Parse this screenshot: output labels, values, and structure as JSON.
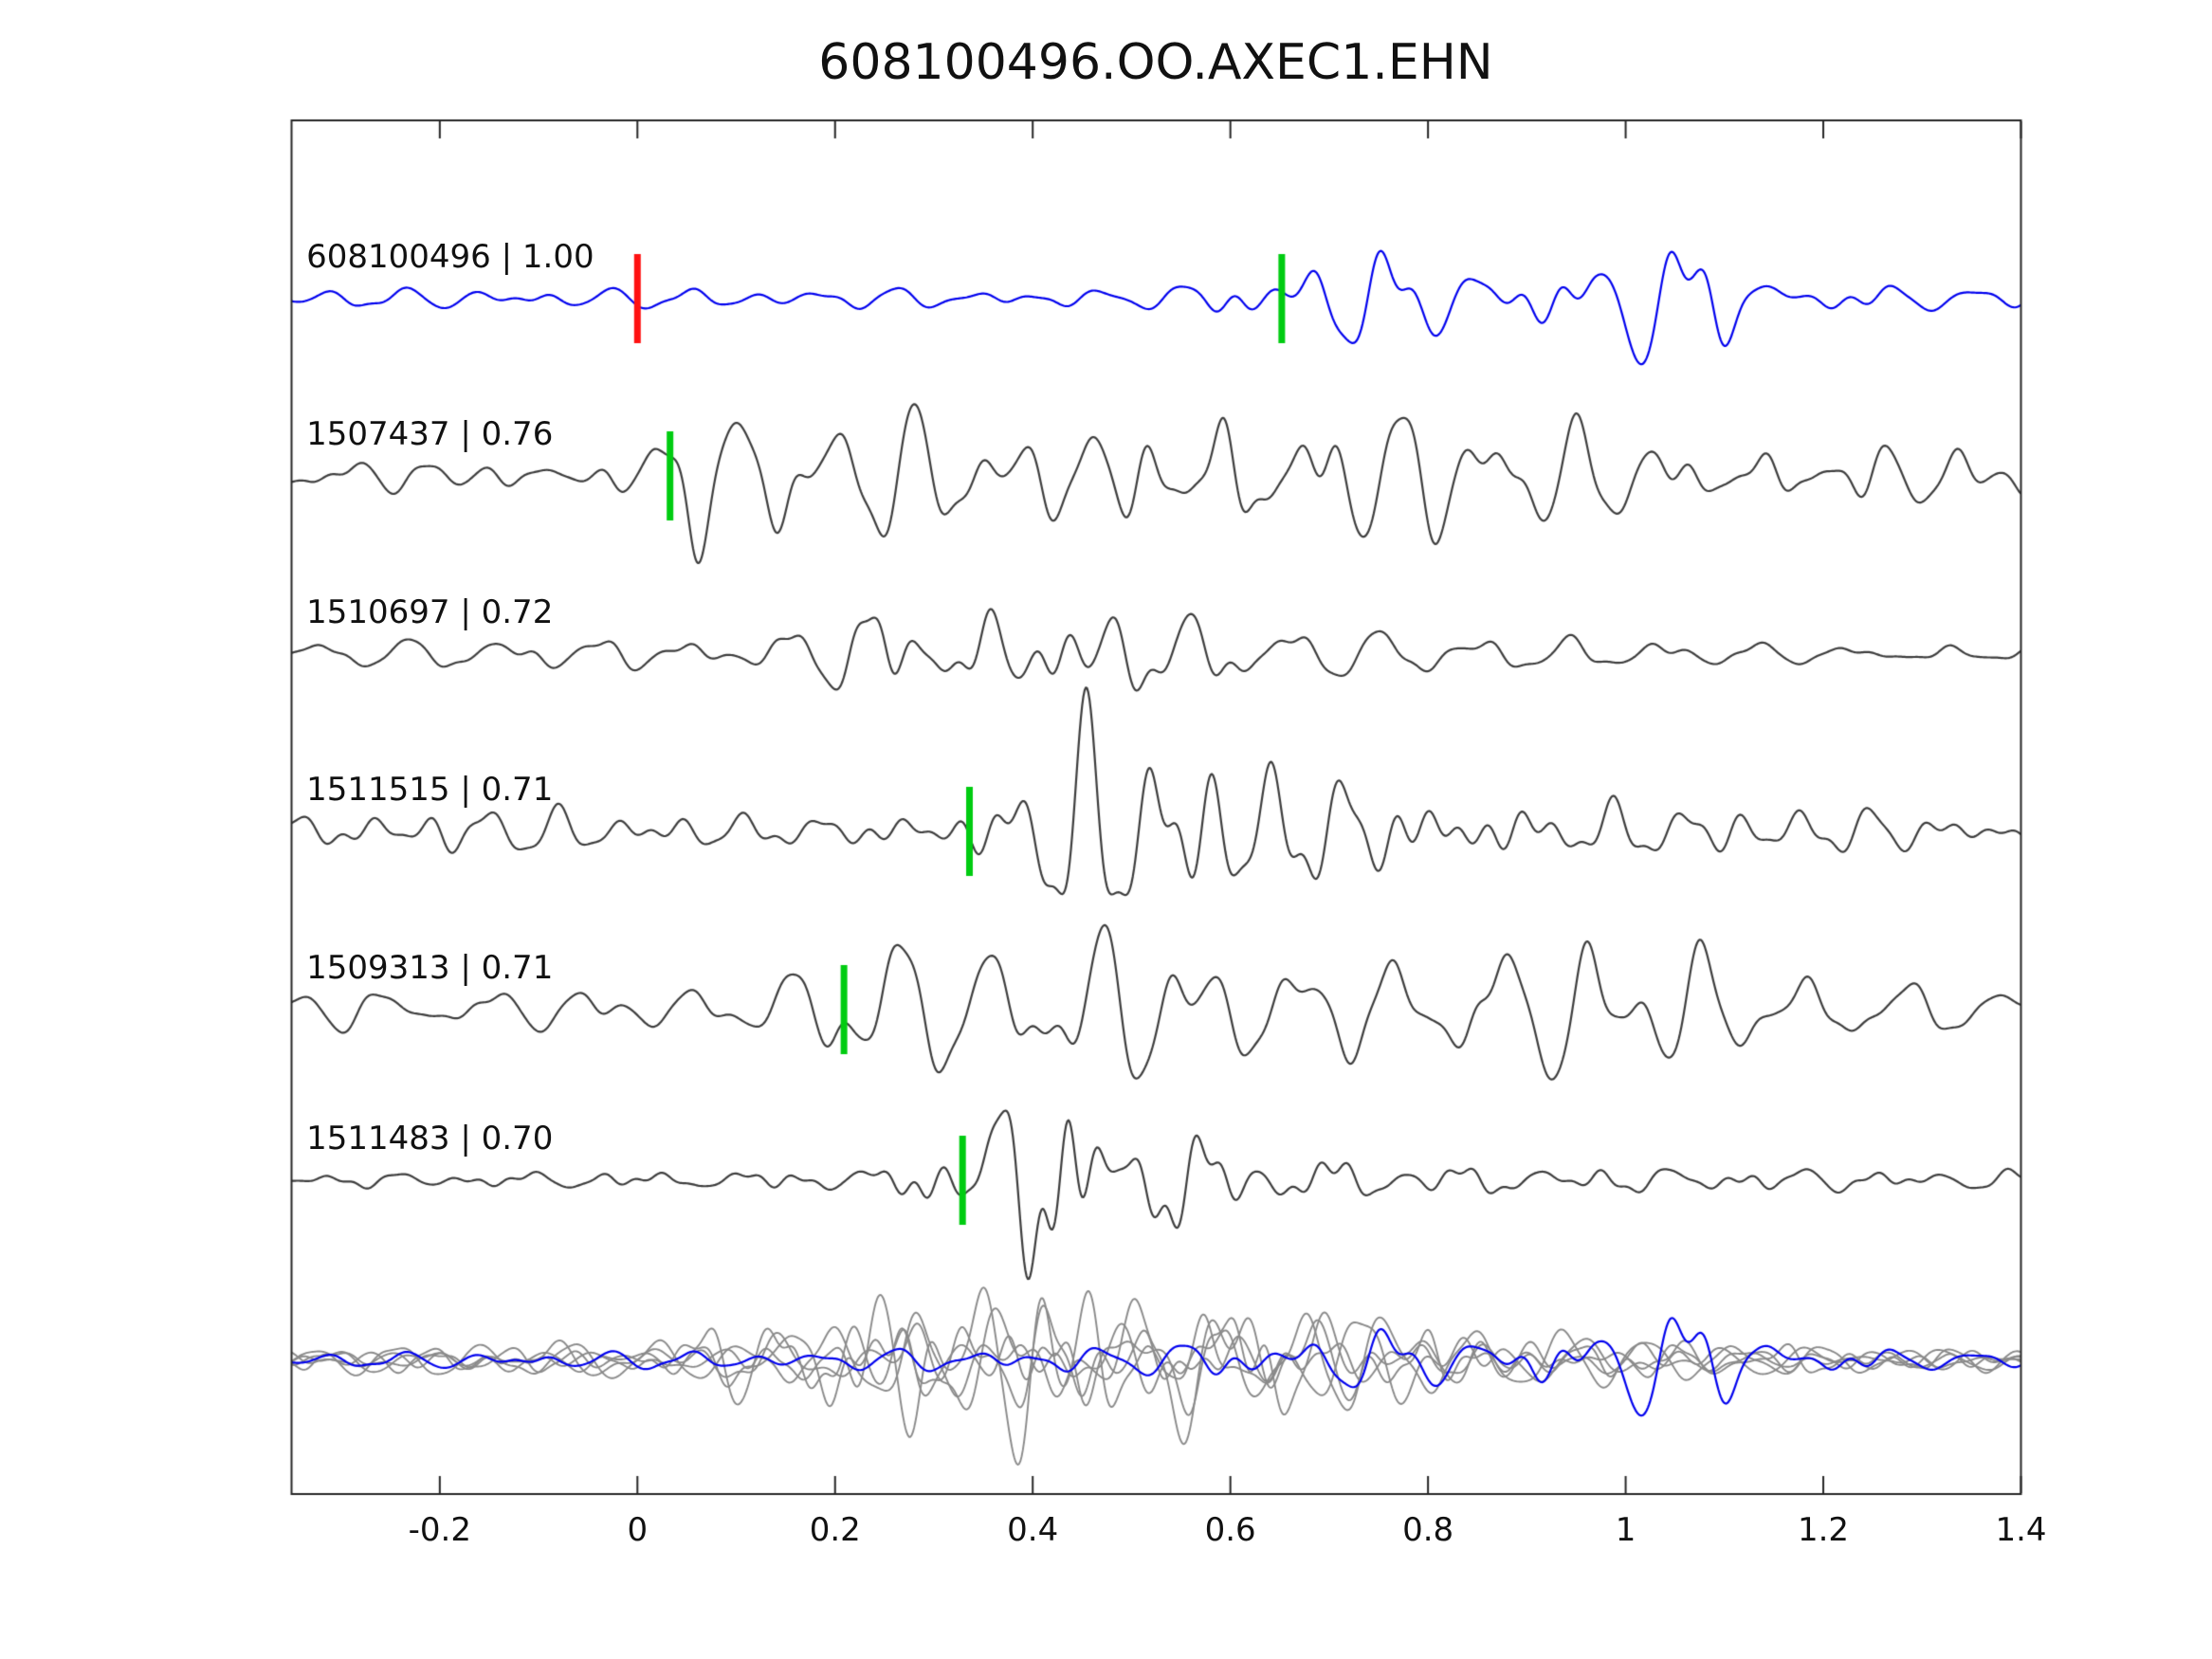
{
  "title": "608100496.OO.AXEC1.EHN",
  "chart_data": {
    "type": "line",
    "title": "608100496.OO.AXEC1.EHN",
    "xlabel": "",
    "ylabel": "",
    "grid": false,
    "legend": false,
    "description": "Template-matching seismogram panel: target trace (blue) with cross-correlation template traces (dark gray), pick markers (red = target origin pick at 0, green = template picks), and an overlay of all aligned traces at the bottom.",
    "x_axis": {
      "min": -0.35,
      "max": 1.4,
      "ticks": [
        -0.2,
        0,
        0.2,
        0.4,
        0.6,
        0.8,
        1,
        1.2,
        1.4
      ],
      "tick_labels": [
        "-0.2",
        "0",
        "0.2",
        "0.4",
        "0.6",
        "0.8",
        "1",
        "1.2",
        "1.4"
      ]
    },
    "colors": {
      "target": "#0000ee",
      "template": "#3d3d3d",
      "overlay": "#8a8a8a",
      "pick_green": "#00cc11",
      "pick_red": "#ff1111",
      "axis": "#262626",
      "text": "#111111"
    },
    "traces": [
      {
        "id": "608100496",
        "label": "608100496 | 1.00",
        "correlation": 1.0,
        "color": "target",
        "seed": 11,
        "label_x": -0.335,
        "markers": [
          {
            "x": 0.0,
            "color": "pick_red"
          },
          {
            "x": 0.652,
            "color": "pick_green"
          }
        ],
        "envelope": [
          [
            -0.35,
            8
          ],
          [
            0.5,
            9
          ],
          [
            0.56,
            16
          ],
          [
            0.62,
            30
          ],
          [
            0.7,
            62
          ],
          [
            0.8,
            46
          ],
          [
            0.9,
            36
          ],
          [
            0.97,
            46
          ],
          [
            1.02,
            95
          ],
          [
            1.08,
            56
          ],
          [
            1.15,
            30
          ],
          [
            1.25,
            15
          ],
          [
            1.4,
            9
          ]
        ]
      },
      {
        "id": "1507437",
        "label": "1507437 | 0.76",
        "correlation": 0.76,
        "color": "template",
        "seed": 22,
        "label_x": -0.335,
        "markers": [
          {
            "x": 0.033,
            "color": "pick_green"
          }
        ],
        "envelope": [
          [
            -0.35,
            15
          ],
          [
            -0.05,
            16
          ],
          [
            0.02,
            48
          ],
          [
            0.06,
            82
          ],
          [
            0.12,
            62
          ],
          [
            0.25,
            52
          ],
          [
            0.4,
            46
          ],
          [
            0.52,
            72
          ],
          [
            0.58,
            96
          ],
          [
            0.7,
            72
          ],
          [
            0.8,
            52
          ],
          [
            0.95,
            44
          ],
          [
            1.1,
            40
          ],
          [
            1.25,
            38
          ],
          [
            1.4,
            26
          ]
        ]
      },
      {
        "id": "1510697",
        "label": "1510697 | 0.72",
        "correlation": 0.72,
        "color": "template",
        "seed": 33,
        "label_x": -0.335,
        "markers": [],
        "envelope": [
          [
            -0.35,
            12
          ],
          [
            0.1,
            13
          ],
          [
            0.18,
            36
          ],
          [
            0.24,
            96
          ],
          [
            0.3,
            56
          ],
          [
            0.4,
            56
          ],
          [
            0.5,
            48
          ],
          [
            0.6,
            38
          ],
          [
            0.72,
            22
          ],
          [
            0.85,
            15
          ],
          [
            1.0,
            11
          ],
          [
            1.4,
            9
          ]
        ]
      },
      {
        "id": "1511515",
        "label": "1511515 | 0.71",
        "correlation": 0.71,
        "color": "template",
        "seed": 44,
        "label_x": -0.335,
        "markers": [
          {
            "x": 0.336,
            "color": "pick_green"
          }
        ],
        "envelope": [
          [
            -0.35,
            20
          ],
          [
            -0.2,
            24
          ],
          [
            -0.05,
            18
          ],
          [
            0.15,
            16
          ],
          [
            0.3,
            20
          ],
          [
            0.38,
            46
          ],
          [
            0.44,
            96
          ],
          [
            0.5,
            86
          ],
          [
            0.58,
            70
          ],
          [
            0.68,
            52
          ],
          [
            0.8,
            40
          ],
          [
            0.95,
            28
          ],
          [
            1.1,
            22
          ],
          [
            1.4,
            15
          ]
        ]
      },
      {
        "id": "1509313",
        "label": "1509313 | 0.71",
        "correlation": 0.71,
        "color": "template",
        "seed": 55,
        "label_x": -0.335,
        "markers": [
          {
            "x": 0.209,
            "color": "pick_green"
          }
        ],
        "envelope": [
          [
            -0.35,
            18
          ],
          [
            0.08,
            18
          ],
          [
            0.18,
            42
          ],
          [
            0.23,
            96
          ],
          [
            0.3,
            60
          ],
          [
            0.42,
            70
          ],
          [
            0.55,
            56
          ],
          [
            0.68,
            46
          ],
          [
            0.8,
            56
          ],
          [
            0.9,
            66
          ],
          [
            1.05,
            50
          ],
          [
            1.2,
            35
          ],
          [
            1.4,
            20
          ]
        ]
      },
      {
        "id": "1511483",
        "label": "1511483 | 0.70",
        "correlation": 0.7,
        "color": "template",
        "seed": 66,
        "label_x": -0.335,
        "markers": [
          {
            "x": 0.329,
            "color": "pick_green"
          }
        ],
        "envelope": [
          [
            -0.35,
            6
          ],
          [
            0.05,
            9
          ],
          [
            0.22,
            12
          ],
          [
            0.3,
            32
          ],
          [
            0.37,
            100
          ],
          [
            0.43,
            118
          ],
          [
            0.5,
            80
          ],
          [
            0.58,
            46
          ],
          [
            0.68,
            25
          ],
          [
            0.8,
            16
          ],
          [
            1.0,
            12
          ],
          [
            1.4,
            8
          ]
        ]
      }
    ],
    "overlay": {
      "traces": [
        {
          "color": "overlay",
          "seed": 71,
          "envelope": [
            [
              -0.35,
              10
            ],
            [
              0.0,
              12
            ],
            [
              0.1,
              35
            ],
            [
              0.2,
              55
            ],
            [
              0.3,
              46
            ],
            [
              0.42,
              62
            ],
            [
              0.55,
              42
            ],
            [
              0.7,
              30
            ],
            [
              0.85,
              20
            ],
            [
              1.0,
              15
            ],
            [
              1.2,
              12
            ],
            [
              1.4,
              9
            ]
          ]
        },
        {
          "color": "overlay",
          "seed": 72,
          "envelope": [
            [
              -0.35,
              8
            ],
            [
              0.05,
              10
            ],
            [
              0.18,
              46
            ],
            [
              0.3,
              66
            ],
            [
              0.42,
              86
            ],
            [
              0.55,
              60
            ],
            [
              0.68,
              40
            ],
            [
              0.8,
              26
            ],
            [
              0.95,
              16
            ],
            [
              1.1,
              12
            ],
            [
              1.4,
              8
            ]
          ]
        },
        {
          "color": "overlay",
          "seed": 73,
          "envelope": [
            [
              -0.35,
              12
            ],
            [
              0.1,
              15
            ],
            [
              0.25,
              50
            ],
            [
              0.4,
              62
            ],
            [
              0.55,
              70
            ],
            [
              0.7,
              46
            ],
            [
              0.85,
              28
            ],
            [
              1.0,
              18
            ],
            [
              1.15,
              14
            ],
            [
              1.4,
              10
            ]
          ]
        },
        {
          "color": "overlay",
          "seed": 74,
          "envelope": [
            [
              -0.35,
              9
            ],
            [
              0.15,
              20
            ],
            [
              0.3,
              42
            ],
            [
              0.45,
              56
            ],
            [
              0.6,
              66
            ],
            [
              0.75,
              40
            ],
            [
              0.9,
              22
            ],
            [
              1.05,
              15
            ],
            [
              1.25,
              12
            ],
            [
              1.4,
              8
            ]
          ]
        },
        {
          "color": "overlay",
          "seed": 75,
          "envelope": [
            [
              -0.35,
              10
            ],
            [
              0.0,
              14
            ],
            [
              0.12,
              30
            ],
            [
              0.22,
              46
            ],
            [
              0.35,
              56
            ],
            [
              0.5,
              46
            ],
            [
              0.65,
              56
            ],
            [
              0.78,
              35
            ],
            [
              0.95,
              20
            ],
            [
              1.15,
              14
            ],
            [
              1.4,
              9
            ]
          ]
        },
        {
          "color": "target",
          "seed": 11,
          "envelope": [
            [
              -0.35,
              6
            ],
            [
              0.2,
              8
            ],
            [
              0.35,
              12
            ],
            [
              0.5,
              14
            ],
            [
              0.6,
              24
            ],
            [
              0.72,
              36
            ],
            [
              0.85,
              30
            ],
            [
              0.97,
              36
            ],
            [
              1.02,
              80
            ],
            [
              1.1,
              46
            ],
            [
              1.2,
              20
            ],
            [
              1.3,
              10
            ],
            [
              1.4,
              7
            ]
          ]
        }
      ]
    }
  }
}
